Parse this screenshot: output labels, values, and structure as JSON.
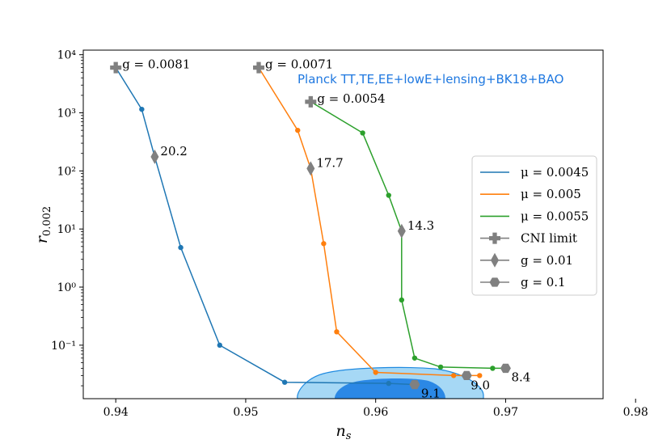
{
  "chart_data": {
    "type": "line",
    "xlabel": "n_s",
    "ylabel": "r_0.002",
    "xlim": [
      0.9375,
      0.9775
    ],
    "ylim": [
      0.012,
      12000
    ],
    "yscale": "log",
    "xticks": [
      0.94,
      0.95,
      0.96,
      0.97,
      0.98
    ],
    "xtick_labels": [
      "0.94",
      "0.95",
      "0.96",
      "0.97",
      "0.98"
    ],
    "yticks": [
      0.1,
      1,
      10,
      100,
      1000,
      10000
    ],
    "ytick_labels": [
      "10⁻¹",
      "10⁰",
      "10¹",
      "10²",
      "10³",
      "10⁴"
    ],
    "grid": false,
    "legend_position": "center-right",
    "annotation": "Planck TT,TE,EE+lowE+lensing+BK18+BAO",
    "series": [
      {
        "name": "μ = 0.0045",
        "color": "#1f77b4",
        "x": [
          0.94,
          0.942,
          0.943,
          0.945,
          0.948,
          0.953,
          0.961,
          0.963
        ],
        "y": [
          6000,
          1150,
          175,
          4.8,
          0.1,
          0.023,
          0.022,
          0.021
        ]
      },
      {
        "name": "μ = 0.005",
        "color": "#ff7f0e",
        "x": [
          0.951,
          0.954,
          0.955,
          0.956,
          0.957,
          0.96,
          0.966,
          0.967,
          0.968
        ],
        "y": [
          6000,
          500,
          110,
          5.6,
          0.17,
          0.034,
          0.03,
          0.03,
          0.03
        ]
      },
      {
        "name": "μ = 0.0055",
        "color": "#2ca02c",
        "x": [
          0.955,
          0.959,
          0.961,
          0.962,
          0.962,
          0.963,
          0.965,
          0.969,
          0.97
        ],
        "y": [
          1550,
          450,
          38,
          9.2,
          0.6,
          0.06,
          0.042,
          0.04,
          0.04
        ]
      }
    ],
    "markers": {
      "cni_limit": {
        "legend": "CNI limit",
        "points": [
          {
            "x": 0.94,
            "y": 6000,
            "label": "g = 0.0081"
          },
          {
            "x": 0.951,
            "y": 6000,
            "label": "g = 0.0071"
          },
          {
            "x": 0.955,
            "y": 1550,
            "label": "g = 0.0054"
          }
        ]
      },
      "g001": {
        "legend": "g = 0.01",
        "points": [
          {
            "x": 0.943,
            "y": 175,
            "label": "20.2"
          },
          {
            "x": 0.955,
            "y": 110,
            "label": "17.7"
          },
          {
            "x": 0.962,
            "y": 9.2,
            "label": "14.3"
          }
        ]
      },
      "g01": {
        "legend": "g = 0.1",
        "points": [
          {
            "x": 0.963,
            "y": 0.021,
            "label": "9.1"
          },
          {
            "x": 0.967,
            "y": 0.03,
            "label": "9.0"
          },
          {
            "x": 0.97,
            "y": 0.04,
            "label": "8.4"
          }
        ]
      }
    },
    "contours": {
      "outer_color": "#a6d8f5",
      "inner_color": "#2b88e5"
    }
  }
}
